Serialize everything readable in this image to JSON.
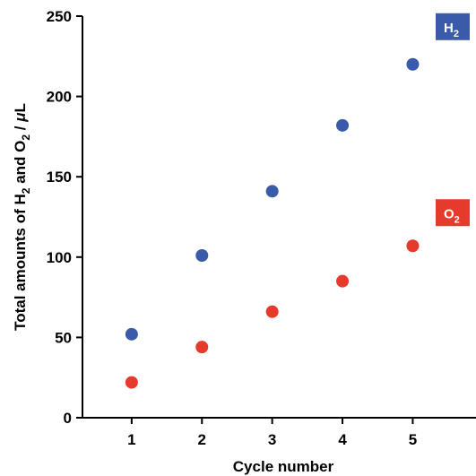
{
  "chart_data": {
    "type": "scatter",
    "x": [
      1,
      2,
      3,
      4,
      5
    ],
    "xlabel": "Cycle number",
    "ylabel_parts": [
      "Total amounts of H",
      "2",
      " and O",
      "2",
      " / ",
      "μ",
      "L"
    ],
    "xticks": [
      "1",
      "2",
      "3",
      "4",
      "5"
    ],
    "yticks": [
      "0",
      "50",
      "100",
      "150",
      "200",
      "250"
    ],
    "xlim": [
      0.3,
      5.9
    ],
    "ylim": [
      0,
      250
    ],
    "grid": false,
    "series": [
      {
        "name": "H2",
        "label_main": "H",
        "label_sub": "2",
        "color": "#3a5ba9",
        "values": [
          52,
          101,
          141,
          182,
          220
        ]
      },
      {
        "name": "O2",
        "label_main": "O",
        "label_sub": "2",
        "color": "#e53a2c",
        "values": [
          22,
          44,
          66,
          85,
          107
        ]
      }
    ],
    "legend": "inline-right"
  }
}
